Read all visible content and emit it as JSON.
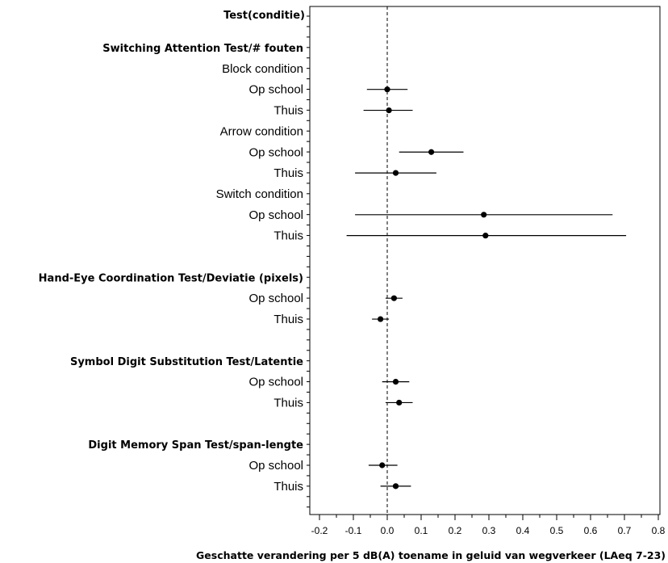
{
  "chart_data": {
    "type": "forest",
    "title": "Test(conditie)",
    "xlabel": "Geschatte verandering per 5 dB(A) toename in geluid van wegverkeer (LAeq 7-23)",
    "xlim": [
      -0.2,
      0.8
    ],
    "xticks": [
      -0.2,
      -0.1,
      0.0,
      0.1,
      0.2,
      0.3,
      0.4,
      0.5,
      0.6,
      0.7,
      0.8
    ],
    "xtick_labels": [
      "-0.2",
      "-0.1",
      "0.0",
      "0.1",
      "0.2",
      "0.3",
      "0.4",
      "0.5",
      "0.6",
      "0.7",
      "0.8"
    ],
    "reference_line": 0,
    "rows": [
      {
        "label": "Switching Attention Test/# fouten",
        "kind": "header"
      },
      {
        "label": "Block condition",
        "kind": "subheader"
      },
      {
        "label": "Op school",
        "kind": "estimate",
        "estimate": 0.0,
        "lower": -0.06,
        "upper": 0.06
      },
      {
        "label": "Thuis",
        "kind": "estimate",
        "estimate": 0.005,
        "lower": -0.07,
        "upper": 0.075
      },
      {
        "label": "Arrow condition",
        "kind": "subheader"
      },
      {
        "label": "Op school",
        "kind": "estimate",
        "estimate": 0.13,
        "lower": 0.035,
        "upper": 0.225
      },
      {
        "label": "Thuis",
        "kind": "estimate",
        "estimate": 0.025,
        "lower": -0.095,
        "upper": 0.145
      },
      {
        "label": "Switch condition",
        "kind": "subheader"
      },
      {
        "label": "Op school",
        "kind": "estimate",
        "estimate": 0.285,
        "lower": -0.095,
        "upper": 0.665
      },
      {
        "label": "Thuis",
        "kind": "estimate",
        "estimate": 0.29,
        "lower": -0.12,
        "upper": 0.705
      },
      {
        "label": "",
        "kind": "blank"
      },
      {
        "label": "Hand-Eye Coordination Test/Deviatie (pixels)",
        "kind": "header"
      },
      {
        "label": "Op school",
        "kind": "estimate",
        "estimate": 0.02,
        "lower": -0.005,
        "upper": 0.045
      },
      {
        "label": "Thuis",
        "kind": "estimate",
        "estimate": -0.02,
        "lower": -0.045,
        "upper": 0.005
      },
      {
        "label": "",
        "kind": "blank"
      },
      {
        "label": "Symbol Digit Substitution Test/Latentie",
        "kind": "header"
      },
      {
        "label": "Op school",
        "kind": "estimate",
        "estimate": 0.025,
        "lower": -0.015,
        "upper": 0.065
      },
      {
        "label": "Thuis",
        "kind": "estimate",
        "estimate": 0.035,
        "lower": -0.005,
        "upper": 0.075
      },
      {
        "label": "",
        "kind": "blank"
      },
      {
        "label": "Digit Memory Span Test/span-lengte",
        "kind": "header"
      },
      {
        "label": "Op school",
        "kind": "estimate",
        "estimate": -0.015,
        "lower": -0.055,
        "upper": 0.03
      },
      {
        "label": "Thuis",
        "kind": "estimate",
        "estimate": 0.025,
        "lower": -0.02,
        "upper": 0.07
      }
    ],
    "grid": false,
    "legend": "none",
    "colors": {
      "marker": "#000000",
      "line": "#000000",
      "axis": "#000000"
    }
  }
}
